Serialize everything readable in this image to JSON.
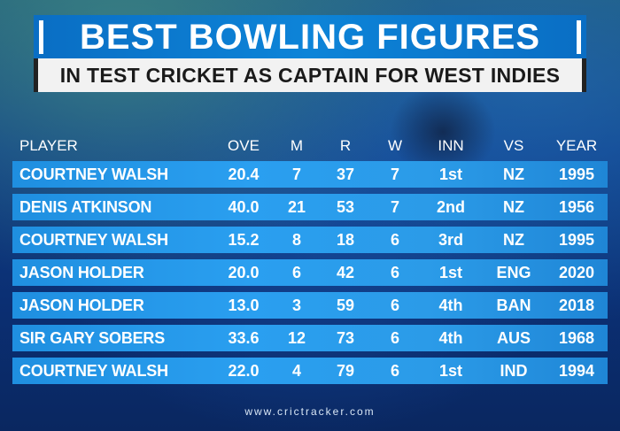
{
  "title": "BEST BOWLING FIGURES",
  "subtitle": "IN TEST CRICKET AS CAPTAIN FOR WEST INDIES",
  "headers": {
    "player": "PLAYER",
    "ove": "OVE",
    "m": "M",
    "r": "R",
    "w": "W",
    "inn": "INN",
    "vs": "VS",
    "year": "YEAR"
  },
  "rows": [
    {
      "player": "COURTNEY WALSH",
      "ove": "20.4",
      "m": "7",
      "r": "37",
      "w": "7",
      "inn": "1st",
      "vs": "NZ",
      "year": "1995"
    },
    {
      "player": "DENIS ATKINSON",
      "ove": "40.0",
      "m": "21",
      "r": "53",
      "w": "7",
      "inn": "2nd",
      "vs": "NZ",
      "year": "1956"
    },
    {
      "player": "COURTNEY WALSH",
      "ove": "15.2",
      "m": "8",
      "r": "18",
      "w": "6",
      "inn": "3rd",
      "vs": "NZ",
      "year": "1995"
    },
    {
      "player": "JASON HOLDER",
      "ove": "20.0",
      "m": "6",
      "r": "42",
      "w": "6",
      "inn": "1st",
      "vs": "ENG",
      "year": "2020"
    },
    {
      "player": "JASON HOLDER",
      "ove": "13.0",
      "m": "3",
      "r": "59",
      "w": "6",
      "inn": "4th",
      "vs": "BAN",
      "year": "2018"
    },
    {
      "player": "SIR GARY SOBERS",
      "ove": "33.6",
      "m": "12",
      "r": "73",
      "w": "6",
      "inn": "4th",
      "vs": "AUS",
      "year": "1968"
    },
    {
      "player": "COURTNEY WALSH",
      "ove": "22.0",
      "m": "4",
      "r": "79",
      "w": "6",
      "inn": "1st",
      "vs": "IND",
      "year": "1994"
    }
  ],
  "footer": "www.crictracker.com",
  "colors": {
    "title_bar": "#0d84d8",
    "subtitle_bar": "#f2f2f2",
    "row_bar": "#2a9ff0",
    "background": "#0b2f6b"
  }
}
